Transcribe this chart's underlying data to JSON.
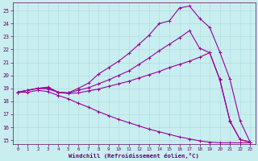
{
  "xlabel": "Windchill (Refroidissement éolien,°C)",
  "bg_color": "#c8eef0",
  "line_color": "#990099",
  "grid_color": "#b0dde0",
  "xlim": [
    -0.5,
    23.5
  ],
  "ylim": [
    14.7,
    25.6
  ],
  "yticks": [
    15,
    16,
    17,
    18,
    19,
    20,
    21,
    22,
    23,
    24,
    25
  ],
  "xticks": [
    0,
    1,
    2,
    3,
    4,
    5,
    6,
    7,
    8,
    9,
    10,
    11,
    12,
    13,
    14,
    15,
    16,
    17,
    18,
    19,
    20,
    21,
    22,
    23
  ],
  "lines": [
    {
      "x": [
        0,
        1,
        2,
        3,
        4,
        5,
        6,
        7,
        8,
        9,
        10,
        11,
        12,
        13,
        14,
        15,
        16,
        17,
        18,
        19,
        20,
        21,
        22,
        23
      ],
      "y": [
        18.7,
        18.85,
        19.0,
        19.1,
        18.7,
        18.65,
        19.0,
        19.4,
        20.1,
        20.6,
        21.1,
        21.7,
        22.4,
        23.1,
        24.0,
        24.2,
        25.2,
        25.35,
        24.4,
        23.7,
        21.8,
        19.7,
        16.5,
        14.85
      ]
    },
    {
      "x": [
        0,
        1,
        2,
        3,
        4,
        5,
        6,
        7,
        8,
        9,
        10,
        11,
        12,
        13,
        14,
        15,
        16,
        17,
        18,
        19,
        20,
        21,
        22,
        23
      ],
      "y": [
        18.7,
        18.85,
        19.0,
        19.05,
        18.7,
        18.65,
        18.85,
        19.05,
        19.35,
        19.65,
        20.0,
        20.35,
        20.85,
        21.35,
        21.9,
        22.4,
        22.9,
        23.45,
        22.1,
        21.75,
        19.7,
        16.5,
        15.05,
        14.85
      ]
    },
    {
      "x": [
        0,
        1,
        2,
        3,
        4,
        5,
        6,
        7,
        8,
        9,
        10,
        11,
        12,
        13,
        14,
        15,
        16,
        17,
        18,
        19,
        20,
        21,
        22,
        23
      ],
      "y": [
        18.7,
        18.85,
        19.0,
        18.95,
        18.7,
        18.6,
        18.65,
        18.8,
        18.95,
        19.15,
        19.35,
        19.55,
        19.8,
        20.05,
        20.3,
        20.6,
        20.85,
        21.1,
        21.4,
        21.75,
        19.65,
        16.45,
        15.05,
        14.85
      ]
    },
    {
      "x": [
        0,
        1,
        2,
        3,
        4,
        5,
        6,
        7,
        8,
        9,
        10,
        11,
        12,
        13,
        14,
        15,
        16,
        17,
        18,
        19,
        20,
        21,
        22,
        23
      ],
      "y": [
        18.7,
        18.7,
        18.85,
        18.75,
        18.45,
        18.2,
        17.85,
        17.55,
        17.2,
        16.9,
        16.6,
        16.35,
        16.1,
        15.85,
        15.65,
        15.45,
        15.25,
        15.1,
        14.95,
        14.85,
        14.8,
        14.8,
        14.8,
        14.8
      ]
    }
  ]
}
